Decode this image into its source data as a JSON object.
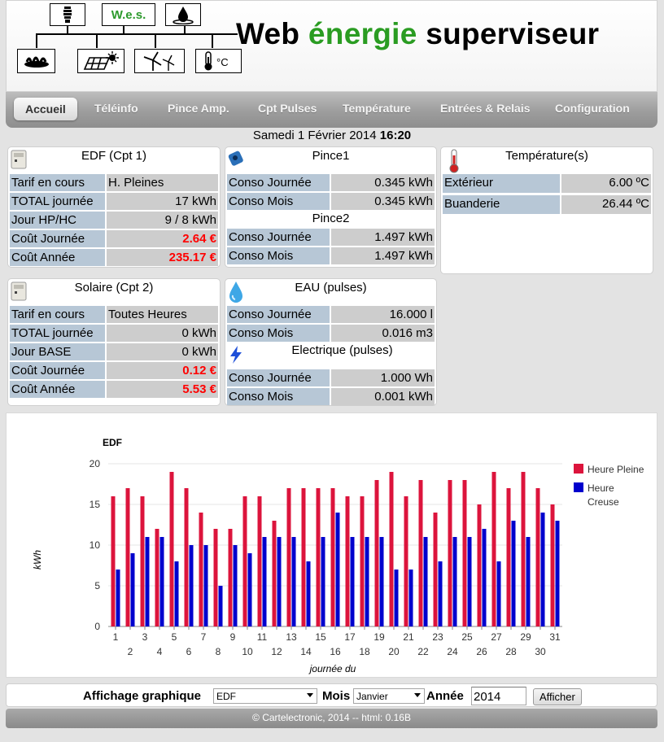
{
  "header": {
    "logo_label": "W.e.s.",
    "title_part1": "Web ",
    "title_part2": "énergie",
    "title_part3": " superviseur",
    "logo_icons_top": [
      "bulb-icon",
      "water-drop-icon"
    ],
    "logo_icons_bottom": [
      "gas-flame-icon",
      "solar-panel-icon",
      "wind-turbine-icon",
      "thermometer-icon"
    ],
    "thermo_unit": "°C",
    "brand_green": "#2a9c22"
  },
  "nav": {
    "items": [
      "Accueil",
      "Téléinfo",
      "Pince Amp.",
      "Cpt Pulses",
      "Température",
      "Entrées & Relais",
      "Configuration"
    ],
    "active": "Accueil"
  },
  "datebar": {
    "date": "Samedi 1 Février 2014",
    "time": "16:20"
  },
  "edf": {
    "title": "EDF (Cpt 1)",
    "rows": [
      {
        "k": "Tarif en cours",
        "v": "H. Pleines"
      },
      {
        "k": "TOTAL journée",
        "v": "17 kWh"
      },
      {
        "k": "Jour HP/HC",
        "v": "9 / 8 kWh"
      },
      {
        "k": "Coût Journée",
        "v": "2.64 €"
      },
      {
        "k": "Coût Année",
        "v": "235.17 €"
      }
    ]
  },
  "pince": {
    "title1": "Pince1",
    "rows1": [
      {
        "k": "Conso Journée",
        "v": "0.345 kWh"
      },
      {
        "k": "Conso Mois",
        "v": "0.345 kWh"
      }
    ],
    "title2": "Pince2",
    "rows2": [
      {
        "k": "Conso Journée",
        "v": "1.497 kWh"
      },
      {
        "k": "Conso Mois",
        "v": "1.497 kWh"
      }
    ]
  },
  "temperature": {
    "title": "Température(s)",
    "rows": [
      {
        "k": "Extérieur",
        "v": "6.00 ºC"
      },
      {
        "k": "Buanderie",
        "v": "26.44 ºC"
      }
    ]
  },
  "solaire": {
    "title": "Solaire (Cpt 2)",
    "rows": [
      {
        "k": "Tarif en cours",
        "v": "Toutes Heures"
      },
      {
        "k": "TOTAL journée",
        "v": "0 kWh"
      },
      {
        "k": "Jour BASE",
        "v": "0 kWh"
      },
      {
        "k": "Coût Journée",
        "v": "0.12 €"
      },
      {
        "k": "Coût Année",
        "v": "5.53 €"
      }
    ]
  },
  "eau": {
    "title": "EAU (pulses)",
    "rows": [
      {
        "k": "Conso Journée",
        "v": "16.000 l"
      },
      {
        "k": "Conso Mois",
        "v": "0.016 m3"
      }
    ]
  },
  "elec": {
    "title": "Electrique (pulses)",
    "rows": [
      {
        "k": "Conso Journée",
        "v": "1.000 Wh"
      },
      {
        "k": "Conso Mois",
        "v": "0.001 kWh"
      }
    ]
  },
  "chart_data": {
    "type": "bar",
    "title": "EDF",
    "xlabel": "journée du",
    "ylabel": "kWh",
    "ylim": [
      0,
      20
    ],
    "yticks": [
      0,
      5,
      10,
      15,
      20
    ],
    "grid": true,
    "legend_position": "right",
    "categories": [
      "1",
      "2",
      "3",
      "4",
      "5",
      "6",
      "7",
      "8",
      "9",
      "10",
      "11",
      "12",
      "13",
      "14",
      "15",
      "16",
      "17",
      "18",
      "19",
      "20",
      "21",
      "22",
      "23",
      "24",
      "25",
      "26",
      "27",
      "28",
      "29",
      "30",
      "31"
    ],
    "series": [
      {
        "name": "Heure Pleine",
        "color": "#dc143c",
        "values": [
          16,
          17,
          16,
          12,
          19,
          17,
          14,
          12,
          12,
          16,
          16,
          13,
          17,
          17,
          17,
          17,
          16,
          16,
          18,
          19,
          16,
          18,
          14,
          18,
          18,
          15,
          19,
          17,
          19,
          17,
          15
        ]
      },
      {
        "name": "Heure Creuse",
        "color": "#0000cd",
        "values": [
          7,
          9,
          11,
          11,
          8,
          10,
          10,
          5,
          10,
          9,
          11,
          11,
          11,
          8,
          11,
          14,
          11,
          11,
          11,
          7,
          7,
          11,
          8,
          11,
          11,
          12,
          8,
          13,
          11,
          14,
          13
        ]
      }
    ]
  },
  "form": {
    "label": "Affichage graphique",
    "type_value": "EDF",
    "mois_label": "Mois",
    "mois_value": "Janvier",
    "annee_label": "Année",
    "annee_value": "2014",
    "button": "Afficher"
  },
  "footer": {
    "text": "© Cartelectronic, 2014 -- html: 0.16B"
  }
}
